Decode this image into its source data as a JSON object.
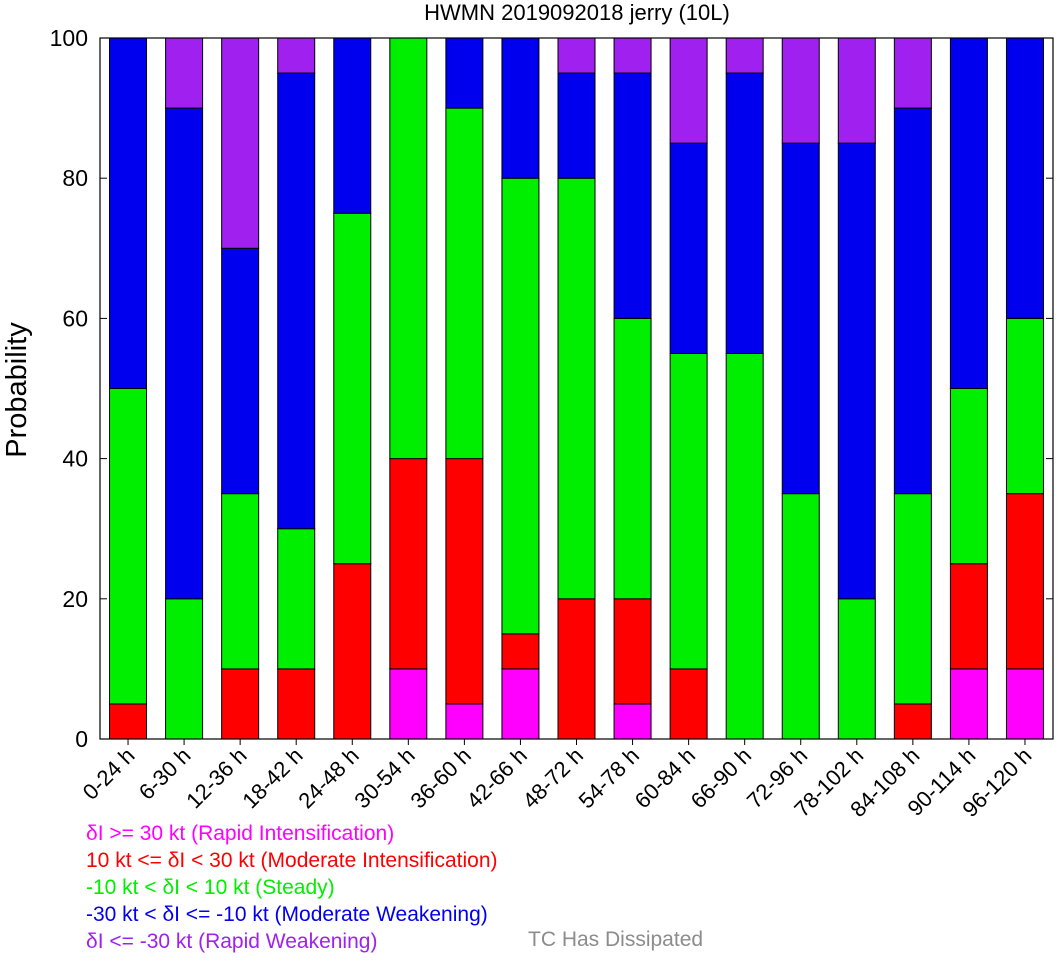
{
  "chart_data": {
    "type": "bar",
    "stacked": true,
    "title": "HWMN 2019092018 jerry (10L)",
    "ylabel": "Probability",
    "xlabel": "",
    "ylim": [
      0,
      100
    ],
    "yticks": [
      0,
      20,
      40,
      60,
      80,
      100
    ],
    "categories": [
      "0-24 h",
      "6-30 h",
      "12-36 h",
      "18-42 h",
      "24-48 h",
      "30-54 h",
      "36-60 h",
      "42-66 h",
      "48-72 h",
      "54-78 h",
      "60-84 h",
      "66-90 h",
      "72-96 h",
      "78-102 h",
      "84-108 h",
      "90-114 h",
      "96-120 h"
    ],
    "series": [
      {
        "name": "δI >= 30 kt (Rapid Intensification)",
        "color": "#ff00ff",
        "values": [
          0,
          0,
          0,
          0,
          0,
          10,
          5,
          10,
          0,
          5,
          0,
          0,
          0,
          0,
          0,
          10,
          10
        ]
      },
      {
        "name": "10 kt <= δI < 30 kt (Moderate Intensification)",
        "color": "#ff0000",
        "values": [
          5,
          0,
          10,
          10,
          25,
          30,
          35,
          5,
          20,
          15,
          10,
          0,
          0,
          0,
          5,
          15,
          25
        ]
      },
      {
        "name": "-10 kt < δI < 10 kt (Steady)",
        "color": "#00ee00",
        "values": [
          45,
          20,
          25,
          20,
          50,
          60,
          50,
          65,
          60,
          40,
          45,
          55,
          35,
          20,
          30,
          25,
          25
        ]
      },
      {
        "name": "-30 kt < δI <= -10 kt (Moderate Weakening)",
        "color": "#0000ee",
        "values": [
          50,
          70,
          35,
          65,
          25,
          0,
          10,
          20,
          15,
          35,
          30,
          40,
          50,
          65,
          55,
          50,
          40
        ]
      },
      {
        "name": "δI <= -30 kt (Rapid Weakening)",
        "color": "#a020f0",
        "values": [
          0,
          10,
          30,
          5,
          0,
          0,
          0,
          0,
          5,
          5,
          15,
          5,
          15,
          15,
          10,
          0,
          0
        ]
      }
    ],
    "extra_legend": {
      "name": "TC Has Dissipated",
      "color": "#8c8c8c"
    },
    "grid": false,
    "legend_position": "bottom-left"
  }
}
